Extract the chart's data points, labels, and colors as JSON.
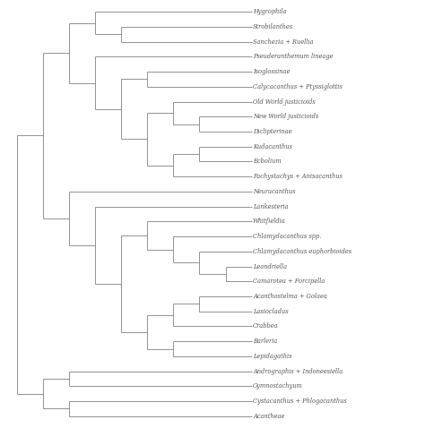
{
  "taxa": [
    "Hygrophila",
    "Strobilanthes",
    "Sanchezia + Ruellia",
    "Pseuderanthemum lineage",
    "Isoglossinae",
    "Calycacanthus + Ptyssiglottis",
    "Old World justicioids",
    "New World justicioids",
    "Diclipterinae",
    "Kudacanthus",
    "Ecbolium",
    "Pachystachys + Anisacanthus",
    "Neuracanthus",
    "Lankesteria",
    "Whitfieldia",
    "Chlamydacanthus spp.",
    "Chlamydacanthus euphorbioides",
    "Leandriella",
    "Camarotea + Forcipella",
    "Acanthostelma + Golaea",
    "Lasiocladus",
    "Crabbea",
    "Barleria",
    "Lepidagathis",
    "Andrographis + Indoneesiella",
    "Gymnostachyum",
    "Cystacanthus + Phlogacanthus",
    "Acantheae"
  ],
  "line_color": "#808080",
  "font_size": 4.8,
  "font_style": "italic",
  "font_color": "#555555",
  "lw": 0.6
}
